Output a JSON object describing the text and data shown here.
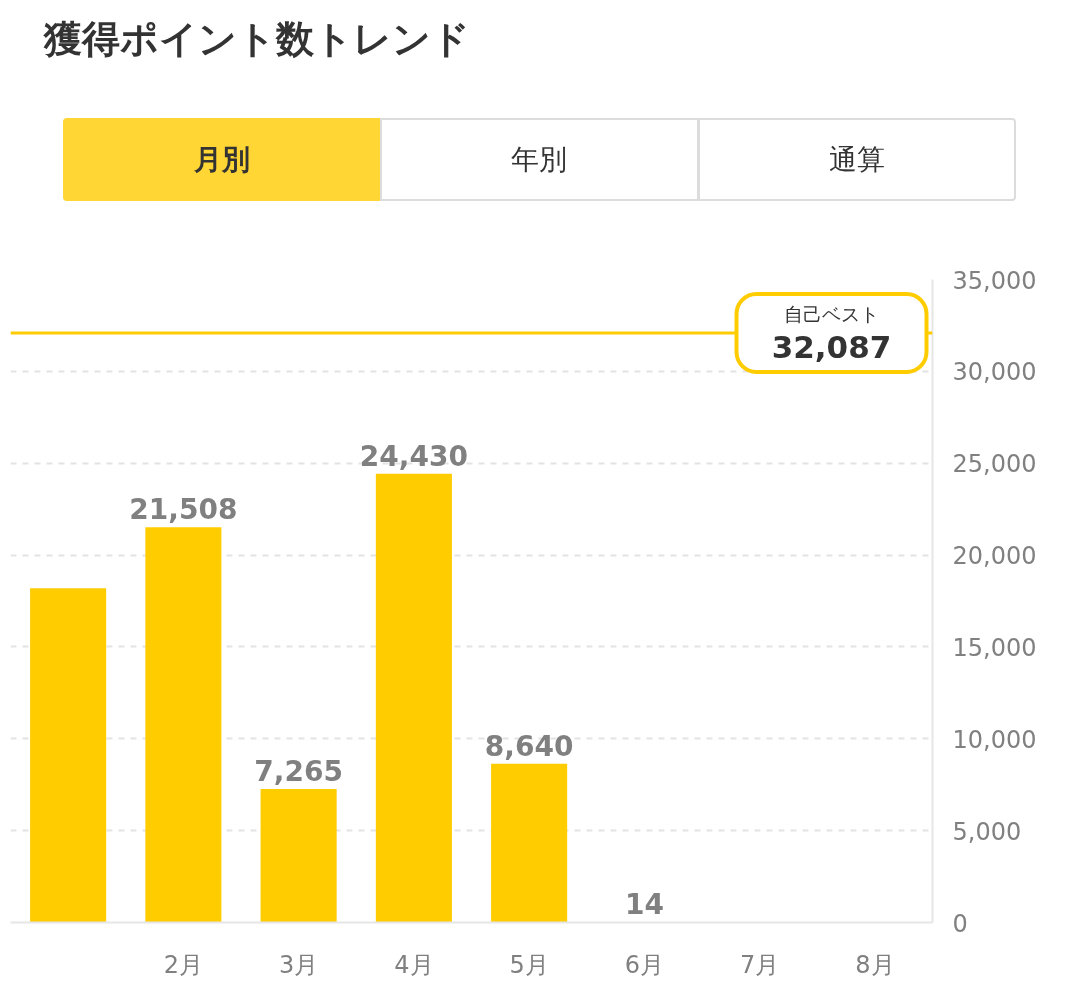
{
  "chart_data": {
    "type": "bar",
    "title": "獲得ポイント数トレンド",
    "annotations": [
      "月別",
      "年別",
      "通算",
      {
        "text": "32,087",
        "y": 32087
      }
    ],
    "categories": [
      null,
      "2月",
      "3月",
      "4月",
      "5月",
      "6月",
      "7月",
      "8月"
    ],
    "values": [
      18200,
      21508,
      7265,
      24430,
      8640,
      14,
      null,
      null
    ],
    "value_labels": [
      null,
      "21,508",
      "7,265",
      "24,430",
      "8,640",
      "14",
      null,
      null
    ],
    "color": "#ffcc00",
    "ylim": [
      0,
      35000
    ],
    "yticks": [
      0,
      {
        "value": 5000,
        "label": "5,000"
      },
      {
        "value": 10000,
        "label": "10,000"
      },
      {
        "value": 15000,
        "label": "15,000"
      },
      {
        "value": 20000,
        "label": "20,000"
      },
      {
        "value": 25000,
        "label": "25,000"
      },
      {
        "value": 30000,
        "label": "30,000"
      },
      {
        "value": 35000,
        "label": "35,000"
      }
    ],
    "grid": "y",
    "ref_lines": [
      {
        "axis": "y",
        "value": 32087,
        "label": "自己ベスト",
        "color": "#ffcc00"
      }
    ]
  }
}
